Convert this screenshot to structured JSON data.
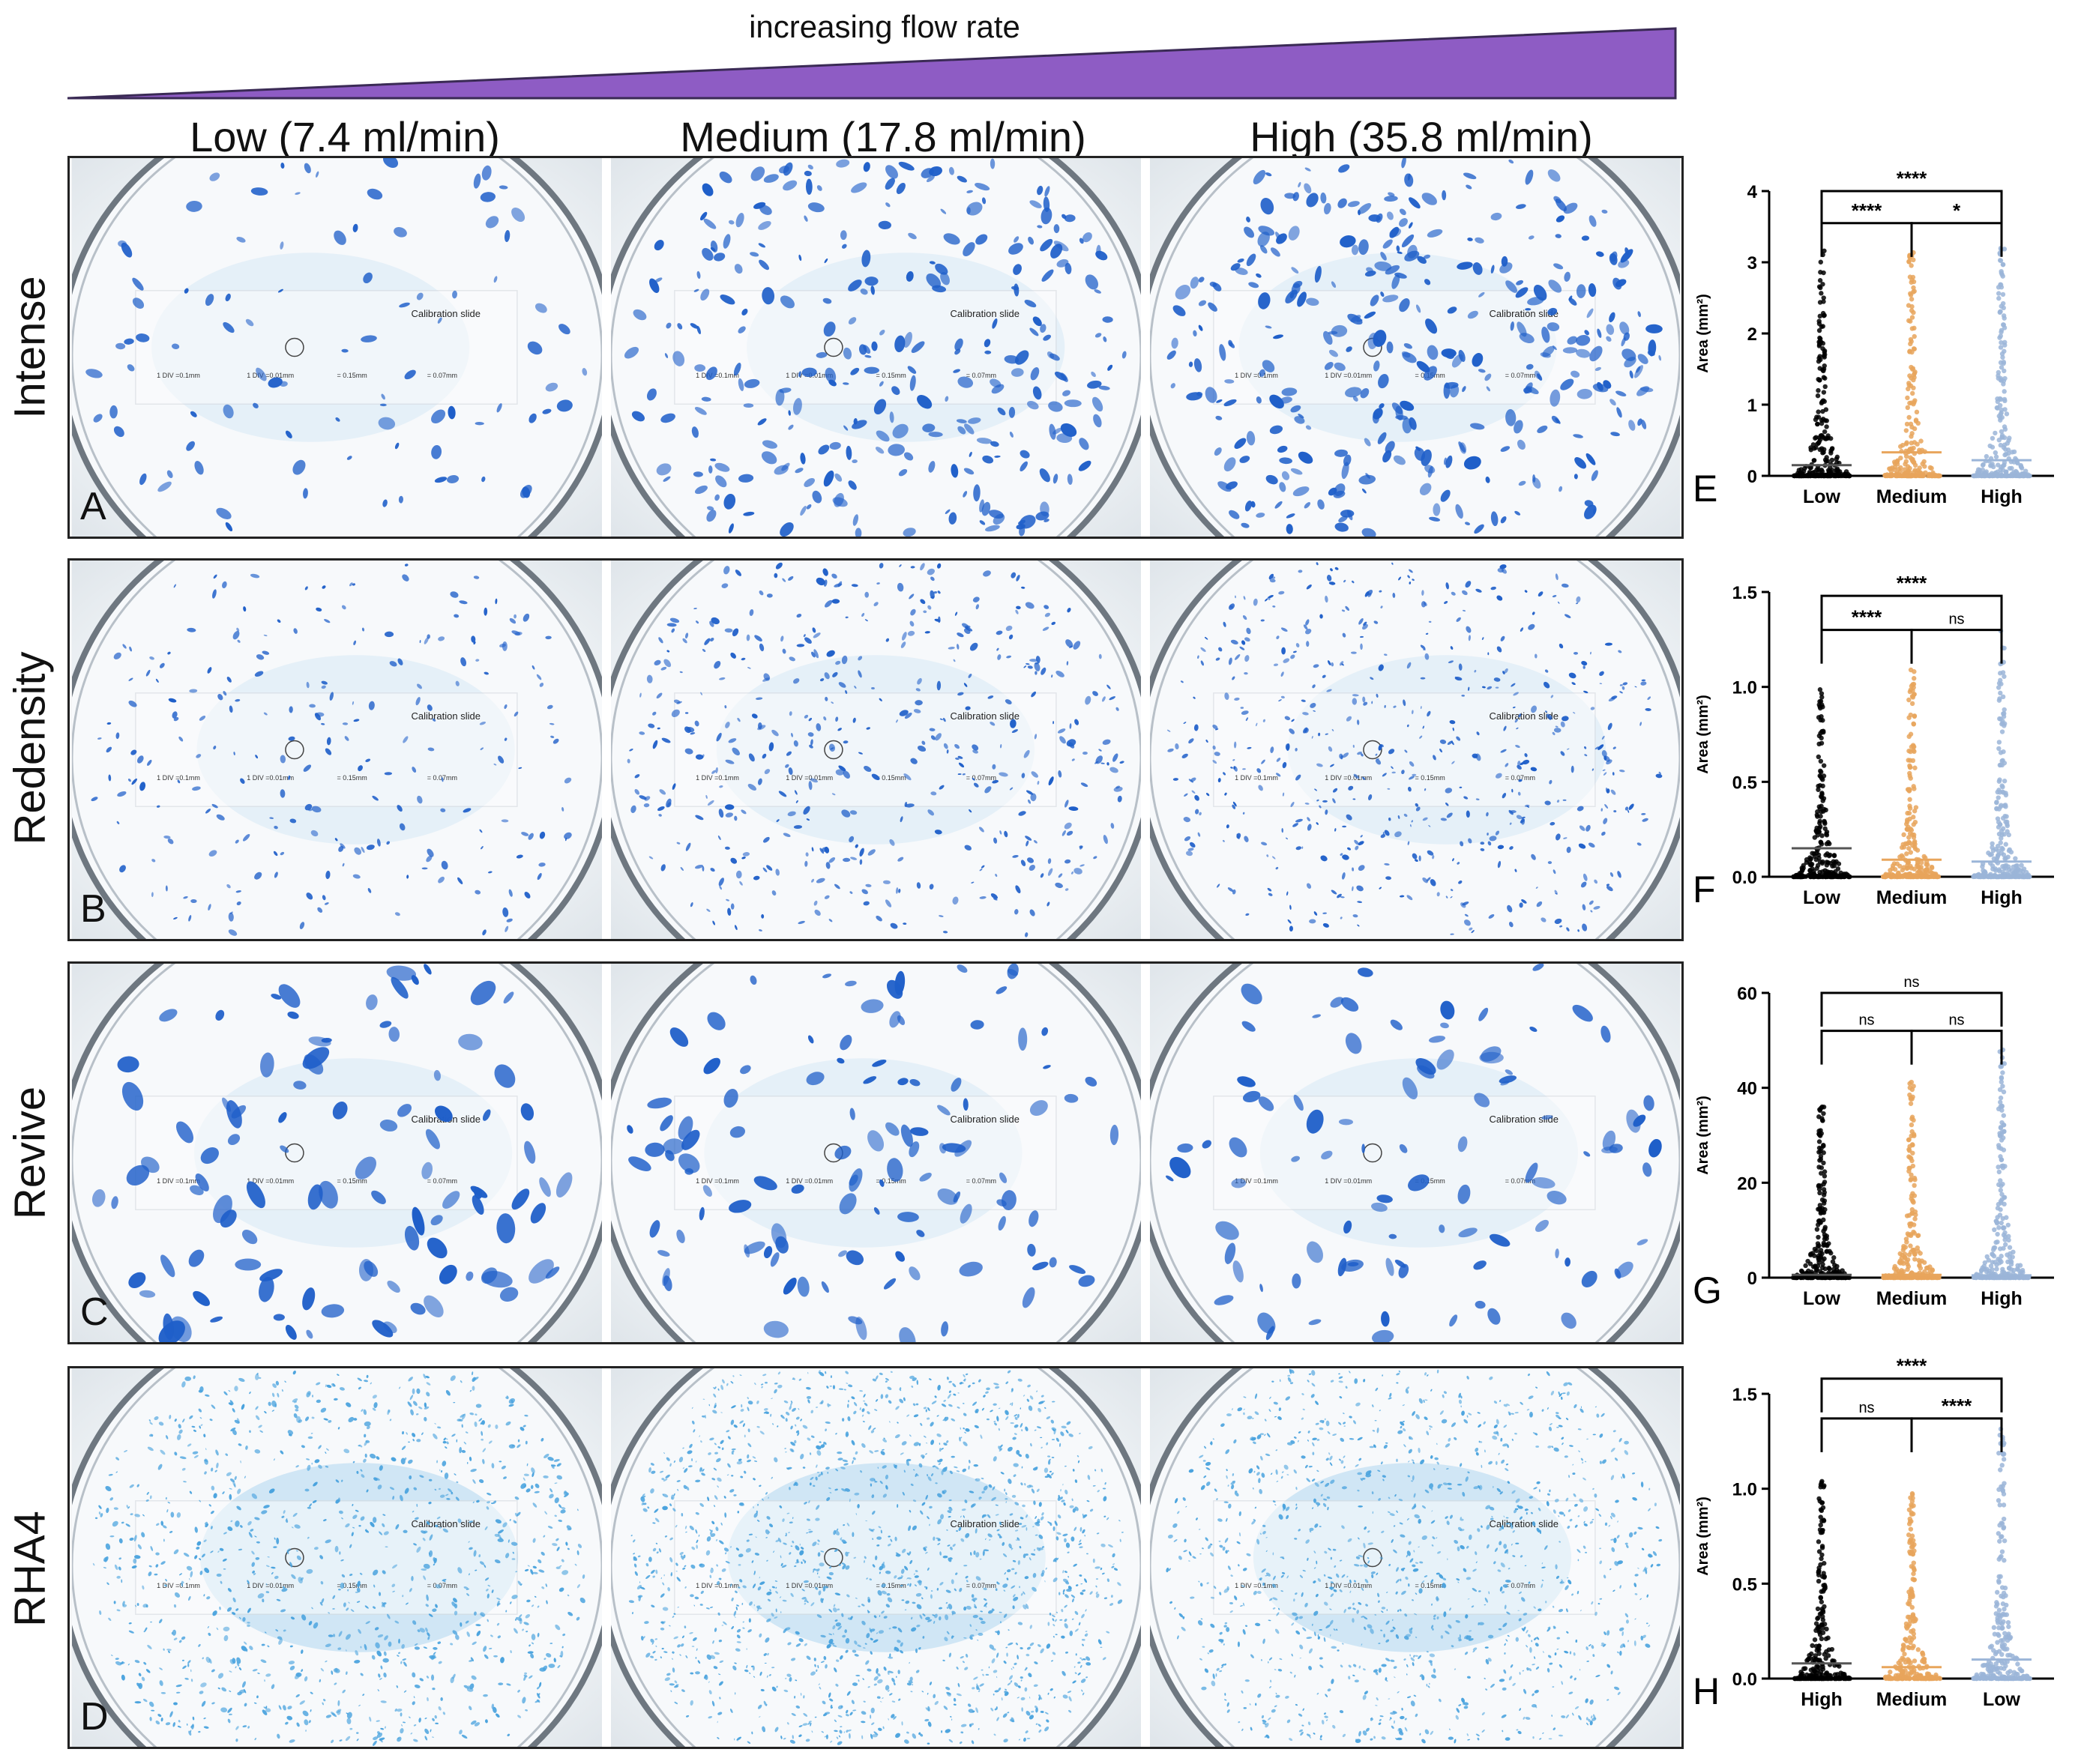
{
  "header": {
    "flow_label": "increasing flow rate",
    "wedge_color": "#8e5cc4"
  },
  "columns": [
    {
      "label": "Low (7.4 ml/min)"
    },
    {
      "label": "Medium (17.8 ml/min)"
    },
    {
      "label": "High (35.8 ml/min)"
    }
  ],
  "rows": [
    {
      "label": "Intense",
      "panel": "A",
      "chart": "E"
    },
    {
      "label": "Redensity",
      "panel": "B",
      "chart": "F"
    },
    {
      "label": "Revive",
      "panel": "C",
      "chart": "G"
    },
    {
      "label": "RHA4",
      "panel": "D",
      "chart": "H"
    }
  ],
  "photos": {
    "slide_label": "Calibration slide",
    "scale_texts": [
      "1 DIV =0.1mm",
      "1 DIV =0.01mm",
      "= 0.15mm",
      "= 0.07mm"
    ],
    "stain_color": "#1f5fc9",
    "diffuse_color": "#4aa3de"
  },
  "chart_data": [
    {
      "type": "scatter",
      "id": "E",
      "ylabel": "Area (mm²)",
      "ylim": [
        0,
        4
      ],
      "yticks": [
        "0",
        "1",
        "2",
        "3",
        "4"
      ],
      "yticks_values": [
        0,
        1,
        2,
        3,
        4
      ],
      "categories": [
        "Low",
        "Medium",
        "High"
      ],
      "colors": [
        "#000000",
        "#e8a55c",
        "#9bb5d8"
      ],
      "means": [
        0.15,
        0.33,
        0.22
      ],
      "max": [
        3.2,
        3.15,
        3.2
      ],
      "brackets": [
        {
          "from": 0,
          "to": 2,
          "label": "****",
          "y": 4.0
        },
        {
          "from": 0,
          "to": 1,
          "label": "****",
          "y": 3.55
        },
        {
          "from": 1,
          "to": 2,
          "label": "*",
          "y": 3.55
        }
      ]
    },
    {
      "type": "scatter",
      "id": "F",
      "ylabel": "Area (mm²)",
      "ylim": [
        0,
        1.5
      ],
      "yticks": [
        "0.0",
        "0.5",
        "1.0",
        "1.5"
      ],
      "yticks_values": [
        0,
        0.5,
        1.0,
        1.5
      ],
      "categories": [
        "Low",
        "Medium",
        "High"
      ],
      "colors": [
        "#000000",
        "#e8a55c",
        "#9bb5d8"
      ],
      "means": [
        0.15,
        0.09,
        0.08
      ],
      "max": [
        1.0,
        1.12,
        1.3
      ],
      "brackets": [
        {
          "from": 0,
          "to": 2,
          "label": "****",
          "y": 1.48
        },
        {
          "from": 0,
          "to": 1,
          "label": "****",
          "y": 1.3
        },
        {
          "from": 1,
          "to": 2,
          "label": "ns",
          "y": 1.3
        }
      ]
    },
    {
      "type": "scatter",
      "id": "G",
      "ylabel": "Area (mm²)",
      "ylim": [
        0,
        60
      ],
      "yticks": [
        "0",
        "20",
        "40",
        "60"
      ],
      "yticks_values": [
        0,
        20,
        40,
        60
      ],
      "categories": [
        "Low",
        "Medium",
        "High"
      ],
      "colors": [
        "#000000",
        "#e8a55c",
        "#9bb5d8"
      ],
      "means": [
        0.6,
        0.6,
        0.5
      ],
      "max": [
        36,
        42,
        48
      ],
      "brackets": [
        {
          "from": 0,
          "to": 2,
          "label": "ns",
          "y": 60
        },
        {
          "from": 0,
          "to": 1,
          "label": "ns",
          "y": 52
        },
        {
          "from": 1,
          "to": 2,
          "label": "ns",
          "y": 52
        }
      ]
    },
    {
      "type": "scatter",
      "id": "H",
      "ylabel": "Area (mm²)",
      "ylim": [
        0,
        1.5
      ],
      "yticks": [
        "0.0",
        "0.5",
        "1.0",
        "1.5"
      ],
      "yticks_values": [
        0,
        0.5,
        1.0,
        1.5
      ],
      "categories": [
        "High",
        "Medium",
        "Low"
      ],
      "colors": [
        "#000000",
        "#e8a55c",
        "#9bb5d8"
      ],
      "means": [
        0.08,
        0.06,
        0.1
      ],
      "max": [
        1.05,
        1.0,
        1.32
      ],
      "brackets": [
        {
          "from": 0,
          "to": 2,
          "label": "****",
          "y": 1.58
        },
        {
          "from": 0,
          "to": 1,
          "label": "ns",
          "y": 1.37
        },
        {
          "from": 1,
          "to": 2,
          "label": "****",
          "y": 1.37
        }
      ]
    }
  ]
}
